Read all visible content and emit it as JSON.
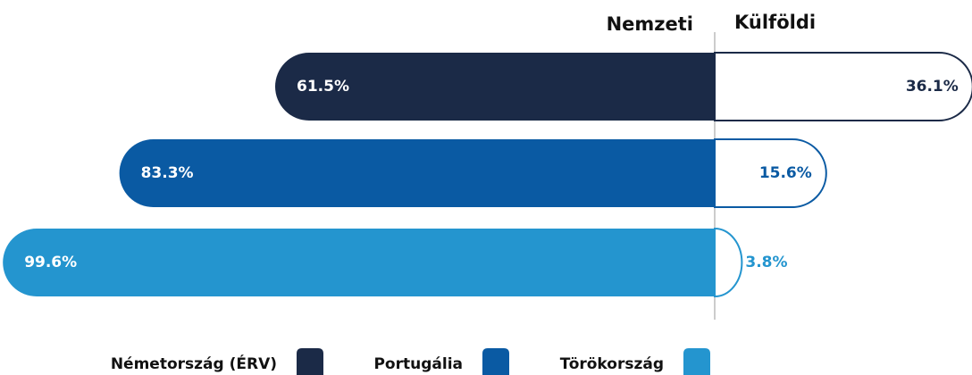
{
  "chart_data": {
    "type": "diverging-bar",
    "categories": [
      "Németország (ÉRV)",
      "Portugália",
      "Törökország"
    ],
    "colors": [
      "#1b2a47",
      "#0a5aa3",
      "#2495cf"
    ],
    "series": [
      {
        "name": "Nemzeti",
        "values": [
          61.5,
          83.3,
          99.6
        ],
        "value_labels": [
          "61.5%",
          "83.3%",
          "99.6%"
        ]
      },
      {
        "name": "Külföldi",
        "values": [
          36.1,
          15.6,
          3.8
        ],
        "value_labels": [
          "36.1%",
          "15.6%",
          "3.8%"
        ]
      }
    ]
  }
}
